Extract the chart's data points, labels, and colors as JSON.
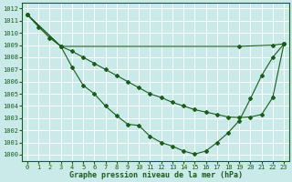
{
  "title": "Graphe pression niveau de la mer (hPa)",
  "bg_color": "#caeaea",
  "grid_color": "#ffffff",
  "line_color": "#1a5c1a",
  "ylim": [
    999.5,
    1012.5
  ],
  "xlim": [
    -0.5,
    23.5
  ],
  "ytick_vals": [
    1000,
    1001,
    1002,
    1003,
    1004,
    1005,
    1006,
    1007,
    1008,
    1009,
    1010,
    1011,
    1012
  ],
  "xtick_vals": [
    0,
    1,
    2,
    3,
    4,
    5,
    6,
    7,
    8,
    9,
    10,
    11,
    12,
    13,
    14,
    15,
    16,
    17,
    18,
    19,
    20,
    21,
    22,
    23
  ],
  "series1_x": [
    0,
    3,
    19,
    22,
    23
  ],
  "series1_y": [
    1011.5,
    1008.9,
    1008.9,
    1009.0,
    1009.1
  ],
  "series2_x": [
    0,
    3,
    4,
    5,
    6,
    7,
    8,
    9,
    10,
    11,
    12,
    13,
    14,
    15,
    16,
    17,
    18,
    19,
    20,
    21,
    22,
    23
  ],
  "series2_y": [
    1011.5,
    1008.9,
    1008.5,
    1008.0,
    1007.5,
    1007.0,
    1006.5,
    1006.0,
    1005.5,
    1005.0,
    1004.7,
    1004.3,
    1004.0,
    1003.7,
    1003.5,
    1003.3,
    1003.1,
    1003.05,
    1003.1,
    1003.3,
    1004.7,
    1009.1
  ],
  "series3_x": [
    0,
    1,
    2,
    3,
    4,
    5,
    6,
    7,
    8,
    9,
    10,
    11,
    12,
    13,
    14,
    15,
    16,
    17,
    18,
    19,
    20,
    21,
    22,
    23
  ],
  "series3_y": [
    1011.5,
    1010.5,
    1009.6,
    1008.9,
    1007.2,
    1005.7,
    1005.0,
    1004.0,
    1003.2,
    1002.5,
    1002.4,
    1001.5,
    1001.0,
    1000.7,
    1000.3,
    1000.05,
    1000.3,
    1001.0,
    1001.8,
    1002.8,
    1004.6,
    1006.5,
    1008.0,
    1009.1
  ]
}
